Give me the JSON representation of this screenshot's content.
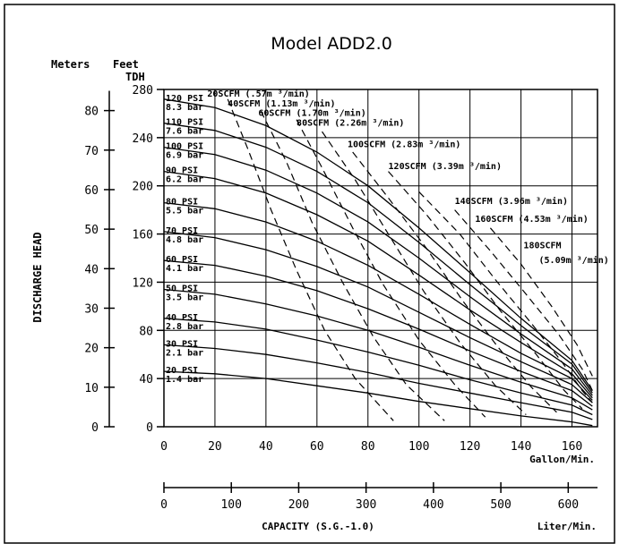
{
  "chart_data": {
    "type": "line",
    "title": "Model ADD2.0",
    "header": {
      "meters": "Meters",
      "feet": "Feet",
      "tdh": "TDH"
    },
    "ylabel": "DISCHARGE HEAD",
    "xlabel_top": "Gallon/Min.",
    "xlabel_bottom": "Liter/Min.",
    "capacity_label": "CAPACITY (S.G.-1.0)",
    "xlim": [
      0,
      170
    ],
    "ylim_feet": [
      0,
      280
    ],
    "feet_ticks": [
      "0",
      "40",
      "80",
      "120",
      "160",
      "200",
      "240",
      "280"
    ],
    "meter_ticks": [
      "0",
      "10",
      "20",
      "30",
      "40",
      "50",
      "60",
      "70",
      "80"
    ],
    "gpm_ticks": [
      "0",
      "20",
      "40",
      "60",
      "80",
      "100",
      "120",
      "140",
      "160"
    ],
    "lpm_ticks": [
      "0",
      "100",
      "200",
      "300",
      "400",
      "500",
      "600"
    ],
    "grid": true,
    "pressure_series": [
      {
        "name": "120 PSI",
        "unit2": "8.3 bar",
        "head_ft": [
          272,
          265,
          250,
          228,
          200,
          165,
          128,
          90,
          55,
          30
        ]
      },
      {
        "name": "110 PSI",
        "unit2": "7.6 bar",
        "head_ft": [
          252,
          246,
          232,
          212,
          186,
          153,
          118,
          84,
          52,
          28
        ]
      },
      {
        "name": "100 PSI",
        "unit2": "6.9 bar",
        "head_ft": [
          232,
          226,
          213,
          194,
          170,
          140,
          108,
          77,
          48,
          26
        ]
      },
      {
        "name": "90 PSI",
        "unit2": "6.2 bar",
        "head_ft": [
          212,
          206,
          194,
          176,
          154,
          126,
          97,
          70,
          44,
          24
        ]
      },
      {
        "name": "80 PSI",
        "unit2": "5.5 bar",
        "head_ft": [
          186,
          181,
          170,
          154,
          134,
          110,
          85,
          61,
          40,
          22
        ]
      },
      {
        "name": "70 PSI",
        "unit2": "4.8 bar",
        "head_ft": [
          162,
          157,
          147,
          133,
          116,
          95,
          74,
          54,
          35,
          20
        ]
      },
      {
        "name": "60 PSI",
        "unit2": "4.1 bar",
        "head_ft": [
          138,
          134,
          125,
          113,
          98,
          81,
          63,
          46,
          30,
          17
        ]
      },
      {
        "name": "50 PSI",
        "unit2": "3.5 bar",
        "head_ft": [
          114,
          110,
          102,
          92,
          80,
          66,
          51,
          37,
          24,
          14
        ]
      },
      {
        "name": "40 PSI",
        "unit2": "2.8 bar",
        "head_ft": [
          90,
          87,
          81,
          72,
          62,
          51,
          39,
          28,
          18,
          10
        ]
      },
      {
        "name": "30 PSI",
        "unit2": "2.1 bar",
        "head_ft": [
          68,
          65,
          60,
          53,
          45,
          36,
          28,
          20,
          12,
          6
        ]
      },
      {
        "name": "20 PSI",
        "unit2": "1.4 bar",
        "head_ft": [
          46,
          44,
          40,
          34,
          28,
          21,
          15,
          9,
          4,
          1
        ]
      }
    ],
    "pressure_gpm": [
      0,
      20,
      40,
      60,
      80,
      100,
      120,
      140,
      160,
      168
    ],
    "air_series": [
      {
        "name": "20SCFM (.57m 3/min)",
        "points": [
          [
            25,
            272
          ],
          [
            33,
            230
          ],
          [
            42,
            180
          ],
          [
            52,
            130
          ],
          [
            63,
            80
          ],
          [
            75,
            40
          ],
          [
            90,
            5
          ]
        ]
      },
      {
        "name": "40SCFM (1.13m 3/min)",
        "points": [
          [
            38,
            262
          ],
          [
            48,
            220
          ],
          [
            58,
            170
          ],
          [
            70,
            120
          ],
          [
            82,
            75
          ],
          [
            95,
            35
          ],
          [
            110,
            5
          ]
        ]
      },
      {
        "name": "60SCFM (1.70m 3/min)",
        "points": [
          [
            52,
            255
          ],
          [
            62,
            215
          ],
          [
            74,
            165
          ],
          [
            86,
            118
          ],
          [
            100,
            72
          ],
          [
            114,
            35
          ],
          [
            126,
            8
          ]
        ]
      },
      {
        "name": "80SCFM (2.26m 3/min)",
        "points": [
          [
            62,
            245
          ],
          [
            75,
            205
          ],
          [
            88,
            160
          ],
          [
            102,
            112
          ],
          [
            116,
            70
          ],
          [
            130,
            34
          ],
          [
            142,
            10
          ]
        ]
      },
      {
        "name": "100SCFM (2.83m 3/min)",
        "points": [
          [
            74,
            228
          ],
          [
            88,
            190
          ],
          [
            103,
            148
          ],
          [
            117,
            105
          ],
          [
            131,
            66
          ],
          [
            144,
            33
          ],
          [
            154,
            12
          ]
        ]
      },
      {
        "name": "120SCFM (3.39m 3/min)",
        "points": [
          [
            88,
            212
          ],
          [
            103,
            176
          ],
          [
            118,
            136
          ],
          [
            132,
            96
          ],
          [
            146,
            60
          ],
          [
            157,
            30
          ],
          [
            164,
            15
          ]
        ]
      },
      {
        "name": "140SCFM (3.96m 3/min)",
        "points": [
          [
            100,
            195
          ],
          [
            116,
            160
          ],
          [
            130,
            122
          ],
          [
            144,
            86
          ],
          [
            156,
            54
          ],
          [
            164,
            30
          ],
          [
            168,
            20
          ]
        ]
      },
      {
        "name": "160SCFM (4.53m 3/min)",
        "points": [
          [
            114,
            180
          ],
          [
            128,
            146
          ],
          [
            142,
            110
          ],
          [
            155,
            76
          ],
          [
            164,
            48
          ],
          [
            168,
            30
          ]
        ]
      },
      {
        "name": "180SCFM (5.09m 3/min)",
        "points": [
          [
            128,
            165
          ],
          [
            140,
            135
          ],
          [
            152,
            100
          ],
          [
            162,
            68
          ],
          [
            168,
            42
          ]
        ]
      }
    ],
    "air_labels": [
      {
        "text": "20SCFM (.57m ³/min)",
        "gpm": 17,
        "ft": 274
      },
      {
        "text": "40SCFM (1.13m ³/min)",
        "gpm": 25,
        "ft": 266
      },
      {
        "text": "60SCFM (1.70m ³/min)",
        "gpm": 37,
        "ft": 258
      },
      {
        "text": "80SCFM (2.26m ³/min)",
        "gpm": 52,
        "ft": 250
      },
      {
        "text": "100SCFM (2.83m ³/min)",
        "gpm": 72,
        "ft": 232
      },
      {
        "text": "120SCFM (3.39m ³/min)",
        "gpm": 88,
        "ft": 214
      },
      {
        "text": "140SCFM (3.96m ³/min)",
        "gpm": 114,
        "ft": 185
      },
      {
        "text": "160SCFM (4.53m ³/min)",
        "gpm": 122,
        "ft": 170
      },
      {
        "text": "180SCFM",
        "gpm": 141,
        "ft": 148
      },
      {
        "text": "(5.09m ³/min)",
        "gpm": 147,
        "ft": 136
      }
    ]
  }
}
